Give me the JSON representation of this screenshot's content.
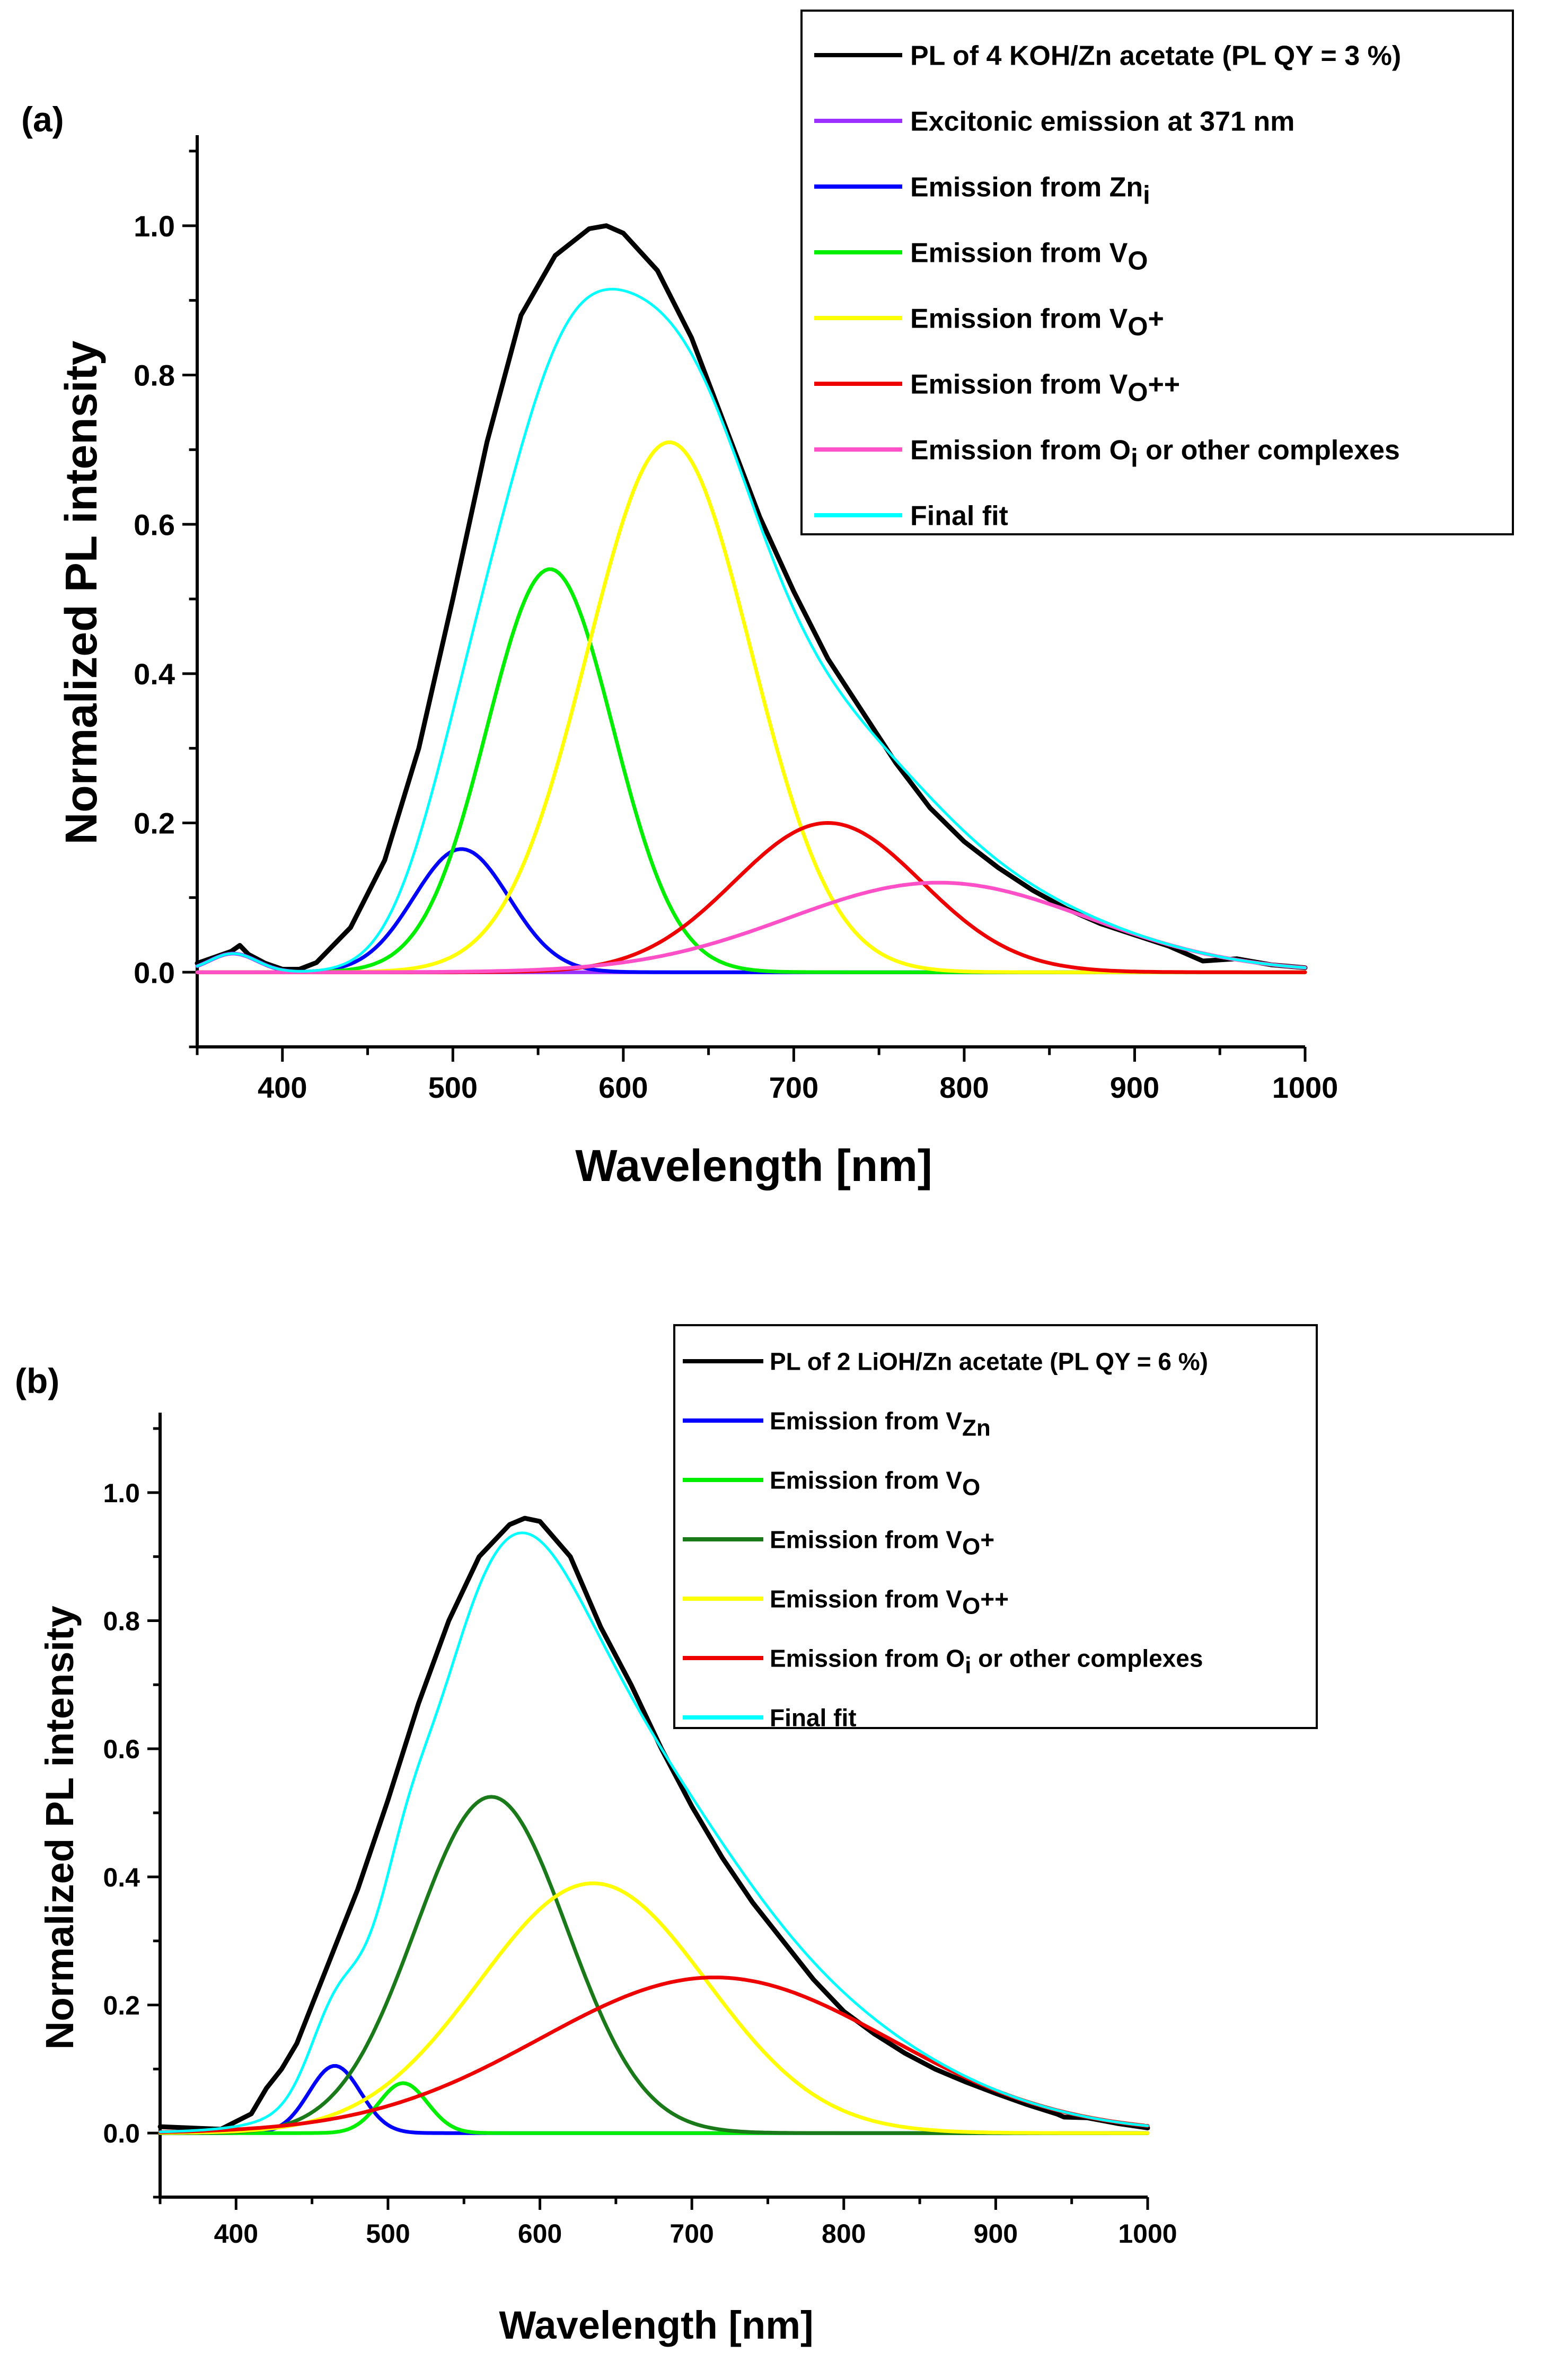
{
  "chart_data": [
    {
      "type": "line",
      "panel_label": "(a)",
      "xlabel": "Wavelength [nm]",
      "ylabel": "Normalized PL intensity",
      "xlim": [
        350,
        1000
      ],
      "ylim": [
        -0.1,
        1.1
      ],
      "xticks": [
        400,
        500,
        600,
        700,
        800,
        900,
        1000
      ],
      "yticks": [
        0.0,
        0.2,
        0.4,
        0.6,
        0.8,
        1.0
      ],
      "legend_position": "top-right",
      "series": [
        {
          "name": "PL of 4 KOH/Zn acetate (PL QY = 3 %)",
          "legend": [
            {
              "t": "PL of 4 KOH/Zn acetate (PL QY = 3 %)",
              "s": "n"
            }
          ],
          "color": "#000000",
          "role": "data",
          "x": [
            350,
            360,
            370,
            375,
            380,
            390,
            400,
            410,
            420,
            440,
            460,
            480,
            500,
            520,
            540,
            560,
            580,
            590,
            600,
            620,
            640,
            660,
            680,
            700,
            720,
            740,
            760,
            780,
            800,
            820,
            840,
            860,
            880,
            900,
            920,
            940,
            960,
            980,
            1000
          ],
          "values": [
            0.012,
            0.02,
            0.028,
            0.036,
            0.024,
            0.012,
            0.004,
            0.004,
            0.013,
            0.06,
            0.15,
            0.3,
            0.5,
            0.71,
            0.88,
            0.96,
            0.996,
            1.0,
            0.99,
            0.94,
            0.85,
            0.73,
            0.61,
            0.51,
            0.42,
            0.35,
            0.28,
            0.22,
            0.175,
            0.14,
            0.11,
            0.085,
            0.065,
            0.05,
            0.035,
            0.015,
            0.018,
            0.01,
            0.006
          ]
        },
        {
          "name": "Excitonic emission at 371 nm",
          "legend": [
            {
              "t": "Excitonic emission at 371 nm",
              "s": "n"
            }
          ],
          "color": "#9B30FF",
          "role": "gauss",
          "center": 371,
          "amplitude": 0.025,
          "sigma": 14
        },
        {
          "name": "Emission from Zni",
          "legend": [
            {
              "t": "Emission from Zn",
              "s": "n"
            },
            {
              "t": "i",
              "s": "sub"
            }
          ],
          "color": "#0000FF",
          "role": "gauss",
          "center": 505,
          "amplitude": 0.165,
          "sigma": 28
        },
        {
          "name": "Emission from VO",
          "legend": [
            {
              "t": "Emission from V",
              "s": "n"
            },
            {
              "t": "O",
              "s": "sub"
            }
          ],
          "color": "#00EE00",
          "role": "gauss",
          "center": 557,
          "amplitude": 0.54,
          "sigma": 37
        },
        {
          "name": "Emission from VO+",
          "legend": [
            {
              "t": "Emission from V",
              "s": "n"
            },
            {
              "t": "O",
              "s": "sub"
            },
            {
              "t": "+",
              "s": "n"
            }
          ],
          "color": "#FFFF00",
          "role": "gauss",
          "center": 627,
          "amplitude": 0.71,
          "sigma": 48
        },
        {
          "name": "Emission from VO++",
          "legend": [
            {
              "t": "Emission from V",
              "s": "n"
            },
            {
              "t": "O",
              "s": "sub"
            },
            {
              "t": "++",
              "s": "n"
            }
          ],
          "color": "#EE0000",
          "role": "gauss",
          "center": 720,
          "amplitude": 0.2,
          "sigma": 55
        },
        {
          "name": "Emission from Oi or other complexes",
          "legend": [
            {
              "t": "Emission from O",
              "s": "n"
            },
            {
              "t": "i",
              "s": "sub"
            },
            {
              "t": " or other complexes",
              "s": "n"
            }
          ],
          "color": "#FF50C8",
          "role": "gauss",
          "center": 785,
          "amplitude": 0.12,
          "sigma": 88
        },
        {
          "name": "Final fit",
          "legend": [
            {
              "t": "Final fit",
              "s": "n"
            }
          ],
          "color": "#00FFFF",
          "role": "sum"
        }
      ]
    },
    {
      "type": "line",
      "panel_label": "(b)",
      "xlabel": "Wavelength [nm]",
      "ylabel": "Normalized PL intensity",
      "xlim": [
        350,
        1000
      ],
      "ylim": [
        -0.1,
        1.1
      ],
      "xticks": [
        400,
        500,
        600,
        700,
        800,
        900,
        1000
      ],
      "yticks": [
        0.0,
        0.2,
        0.4,
        0.6,
        0.8,
        1.0
      ],
      "legend_position": "top-right",
      "series": [
        {
          "name": "PL of 2 LiOH/Zn acetate (PL QY = 6 %)",
          "legend": [
            {
              "t": "PL of 2 LiOH/Zn acetate (PL QY = 6 %)",
              "s": "n"
            }
          ],
          "color": "#000000",
          "role": "data",
          "x": [
            350,
            370,
            390,
            410,
            420,
            430,
            440,
            450,
            460,
            470,
            480,
            500,
            520,
            540,
            560,
            580,
            590,
            600,
            620,
            640,
            660,
            680,
            700,
            720,
            740,
            760,
            780,
            800,
            820,
            840,
            860,
            880,
            900,
            920,
            940,
            945,
            960,
            980,
            1000
          ],
          "values": [
            0.01,
            0.008,
            0.006,
            0.03,
            0.07,
            0.1,
            0.14,
            0.2,
            0.26,
            0.32,
            0.38,
            0.52,
            0.67,
            0.8,
            0.9,
            0.95,
            0.96,
            0.955,
            0.9,
            0.79,
            0.7,
            0.6,
            0.51,
            0.43,
            0.36,
            0.3,
            0.24,
            0.19,
            0.155,
            0.125,
            0.1,
            0.08,
            0.062,
            0.045,
            0.03,
            0.025,
            0.024,
            0.015,
            0.008
          ]
        },
        {
          "name": "Emission from VZn",
          "legend": [
            {
              "t": "Emission from V",
              "s": "n"
            },
            {
              "t": "Zn",
              "s": "sub"
            }
          ],
          "color": "#0000FF",
          "role": "gauss",
          "center": 465,
          "amplitude": 0.105,
          "sigma": 17
        },
        {
          "name": "Emission from VO",
          "legend": [
            {
              "t": "Emission from V",
              "s": "n"
            },
            {
              "t": "O",
              "s": "sub"
            }
          ],
          "color": "#00EE00",
          "role": "gauss",
          "center": 510,
          "amplitude": 0.078,
          "sigma": 16
        },
        {
          "name": "Emission from VO+",
          "legend": [
            {
              "t": "Emission from V",
              "s": "n"
            },
            {
              "t": "O",
              "s": "sub"
            },
            {
              "t": "+",
              "s": "n"
            }
          ],
          "color": "#1A7A1A",
          "role": "gauss",
          "center": 568,
          "amplitude": 0.525,
          "sigma": 50
        },
        {
          "name": "Emission from VO++",
          "legend": [
            {
              "t": "Emission from V",
              "s": "n"
            },
            {
              "t": "O",
              "s": "sub"
            },
            {
              "t": "++",
              "s": "n"
            }
          ],
          "color": "#FFFF00",
          "role": "gauss",
          "center": 635,
          "amplitude": 0.39,
          "sigma": 75
        },
        {
          "name": "Emission from Oi or other complexes",
          "legend": [
            {
              "t": "Emission from O",
              "s": "n"
            },
            {
              "t": "i",
              "s": "sub"
            },
            {
              "t": " or other complexes",
              "s": "n"
            }
          ],
          "color": "#EE0000",
          "role": "gauss",
          "center": 715,
          "amplitude": 0.243,
          "sigma": 115
        },
        {
          "name": "Final fit",
          "legend": [
            {
              "t": "Final fit",
              "s": "n"
            }
          ],
          "color": "#00FFFF",
          "role": "sum"
        }
      ]
    }
  ]
}
